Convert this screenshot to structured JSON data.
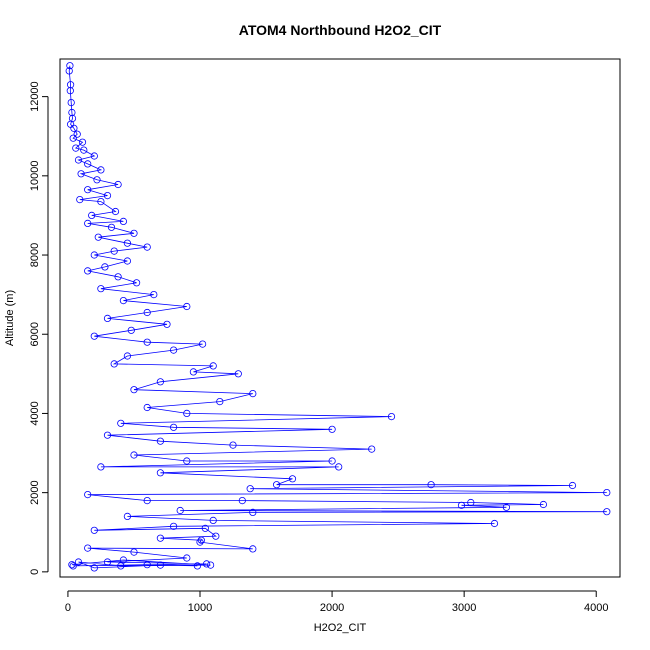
{
  "chart_data": {
    "type": "line",
    "title": "ATOM4 Northbound H2O2_CIT",
    "xlabel": "H2O2_CIT",
    "ylabel": "Altitude (m)",
    "xlim": [
      -60,
      4180
    ],
    "ylim": [
      -130,
      12950
    ],
    "xticks": [
      0,
      1000,
      2000,
      3000,
      4000
    ],
    "yticks": [
      0,
      2000,
      4000,
      6000,
      8000,
      10000,
      12000
    ],
    "xtick_labels": [
      "0",
      "1000",
      "2000",
      "3000",
      "4000"
    ],
    "ytick_labels": [
      "0",
      "2000",
      "4000",
      "6000",
      "8000",
      "10000",
      "12000"
    ],
    "grid": false,
    "legend": "none",
    "series_color": "#0000ff",
    "marker": "open-circle",
    "points": [
      [
        15,
        12780
      ],
      [
        10,
        12650
      ],
      [
        20,
        12300
      ],
      [
        18,
        12150
      ],
      [
        25,
        11850
      ],
      [
        30,
        11600
      ],
      [
        35,
        11450
      ],
      [
        20,
        11300
      ],
      [
        45,
        11200
      ],
      [
        70,
        11050
      ],
      [
        40,
        10950
      ],
      [
        110,
        10850
      ],
      [
        60,
        10700
      ],
      [
        120,
        10650
      ],
      [
        200,
        10500
      ],
      [
        80,
        10400
      ],
      [
        150,
        10300
      ],
      [
        250,
        10150
      ],
      [
        100,
        10050
      ],
      [
        220,
        9900
      ],
      [
        380,
        9780
      ],
      [
        150,
        9650
      ],
      [
        300,
        9500
      ],
      [
        90,
        9400
      ],
      [
        250,
        9350
      ],
      [
        360,
        9100
      ],
      [
        180,
        9000
      ],
      [
        420,
        8850
      ],
      [
        150,
        8800
      ],
      [
        330,
        8700
      ],
      [
        500,
        8550
      ],
      [
        230,
        8450
      ],
      [
        450,
        8300
      ],
      [
        600,
        8200
      ],
      [
        350,
        8100
      ],
      [
        200,
        8000
      ],
      [
        450,
        7850
      ],
      [
        280,
        7700
      ],
      [
        150,
        7600
      ],
      [
        380,
        7450
      ],
      [
        520,
        7300
      ],
      [
        250,
        7150
      ],
      [
        650,
        7000
      ],
      [
        420,
        6850
      ],
      [
        900,
        6700
      ],
      [
        600,
        6550
      ],
      [
        300,
        6400
      ],
      [
        750,
        6250
      ],
      [
        480,
        6100
      ],
      [
        200,
        5950
      ],
      [
        600,
        5800
      ],
      [
        1020,
        5750
      ],
      [
        800,
        5600
      ],
      [
        450,
        5450
      ],
      [
        350,
        5250
      ],
      [
        1100,
        5200
      ],
      [
        950,
        5050
      ],
      [
        1290,
        5000
      ],
      [
        700,
        4800
      ],
      [
        500,
        4600
      ],
      [
        1400,
        4500
      ],
      [
        1150,
        4300
      ],
      [
        600,
        4150
      ],
      [
        900,
        4000
      ],
      [
        2450,
        3920
      ],
      [
        400,
        3750
      ],
      [
        800,
        3650
      ],
      [
        2000,
        3600
      ],
      [
        300,
        3450
      ],
      [
        700,
        3300
      ],
      [
        1250,
        3200
      ],
      [
        2300,
        3100
      ],
      [
        500,
        2950
      ],
      [
        900,
        2800
      ],
      [
        2000,
        2800
      ],
      [
        250,
        2650
      ],
      [
        2050,
        2650
      ],
      [
        700,
        2500
      ],
      [
        1700,
        2350
      ],
      [
        1580,
        2200
      ],
      [
        2750,
        2200
      ],
      [
        3820,
        2180
      ],
      [
        1380,
        2100
      ],
      [
        4080,
        2000
      ],
      [
        150,
        1950
      ],
      [
        600,
        1800
      ],
      [
        1320,
        1800
      ],
      [
        3050,
        1750
      ],
      [
        3600,
        1700
      ],
      [
        2980,
        1680
      ],
      [
        3320,
        1630
      ],
      [
        850,
        1550
      ],
      [
        4080,
        1520
      ],
      [
        1400,
        1500
      ],
      [
        450,
        1400
      ],
      [
        1100,
        1300
      ],
      [
        3230,
        1220
      ],
      [
        800,
        1150
      ],
      [
        200,
        1050
      ],
      [
        1040,
        1100
      ],
      [
        1120,
        900
      ],
      [
        700,
        850
      ],
      [
        1010,
        800
      ],
      [
        1000,
        750
      ],
      [
        1400,
        580
      ],
      [
        150,
        600
      ],
      [
        500,
        500
      ],
      [
        900,
        350
      ],
      [
        300,
        250
      ],
      [
        1050,
        200
      ],
      [
        40,
        150
      ],
      [
        600,
        180
      ],
      [
        980,
        150
      ],
      [
        700,
        170
      ],
      [
        200,
        100
      ],
      [
        80,
        250
      ],
      [
        400,
        150
      ],
      [
        1080,
        170
      ],
      [
        420,
        300
      ],
      [
        30,
        180
      ]
    ]
  }
}
